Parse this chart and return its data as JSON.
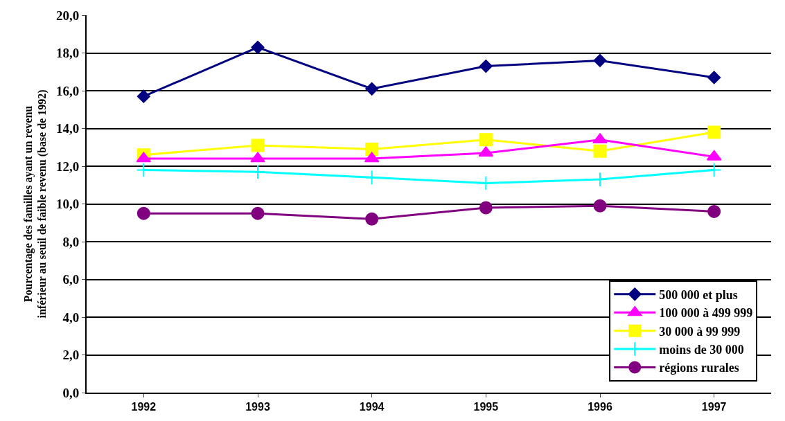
{
  "chart_data": {
    "type": "line",
    "ylabel": "Pourcentage des familles ayant un revenu\ninférieur au seuil de faible revenu (base de 1992)",
    "categories": [
      "1992",
      "1993",
      "1994",
      "1995",
      "1996",
      "1997"
    ],
    "series": [
      {
        "name": "500 000 et plus",
        "color": "#000080",
        "marker": "diamond",
        "values": [
          15.7,
          18.3,
          16.1,
          17.3,
          17.6,
          16.7
        ]
      },
      {
        "name": "100 000 à 499 999",
        "color": "#ff00ff",
        "marker": "triangle",
        "values": [
          12.4,
          12.4,
          12.4,
          12.7,
          13.4,
          12.5
        ]
      },
      {
        "name": "30 000 à 99 999",
        "color": "#ffff00",
        "marker": "square",
        "values": [
          12.6,
          13.1,
          12.9,
          13.4,
          12.8,
          13.8
        ]
      },
      {
        "name": "moins de 30 000",
        "color": "#00ffff",
        "marker": "cross",
        "values": [
          11.8,
          11.7,
          11.4,
          11.1,
          11.3,
          11.8
        ]
      },
      {
        "name": "régions rurales",
        "color": "#800080",
        "marker": "circle",
        "values": [
          9.5,
          9.5,
          9.2,
          9.8,
          9.9,
          9.6
        ]
      }
    ],
    "ylim": [
      0,
      20
    ],
    "yticks": [
      {
        "value": 0,
        "label": "0,0"
      },
      {
        "value": 2,
        "label": "2,0"
      },
      {
        "value": 4,
        "label": "4,0"
      },
      {
        "value": 6,
        "label": "6,0"
      },
      {
        "value": 8,
        "label": "8,0"
      },
      {
        "value": 10,
        "label": "10,0"
      },
      {
        "value": 12,
        "label": "12,0"
      },
      {
        "value": 14,
        "label": "14,0"
      },
      {
        "value": 16,
        "label": "16,0"
      },
      {
        "value": 18,
        "label": "18,0"
      },
      {
        "value": 20,
        "label": "20,0"
      }
    ],
    "grid": "y",
    "legend": "bottom right",
    "line_style": "solid"
  }
}
